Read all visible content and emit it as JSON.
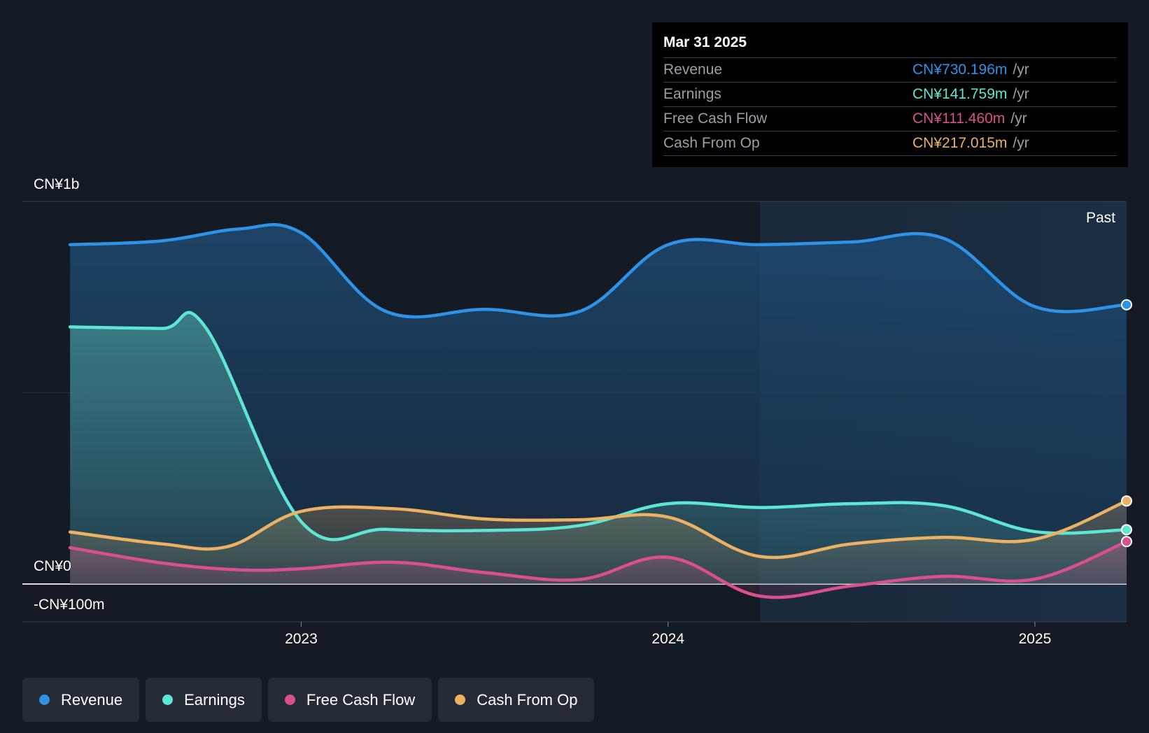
{
  "tooltip": {
    "date": "Mar 31 2025",
    "rows": [
      {
        "label": "Revenue",
        "value": "CN¥730.196m",
        "unit": "/yr",
        "color": "#2e93e6"
      },
      {
        "label": "Earnings",
        "value": "CN¥141.759m",
        "unit": "/yr",
        "color": "#5ee6d4"
      },
      {
        "label": "Free Cash Flow",
        "value": "CN¥111.460m",
        "unit": "/yr",
        "color": "#d9508c"
      },
      {
        "label": "Cash From Op",
        "value": "CN¥217.015m",
        "unit": "/yr",
        "color": "#ecb163"
      }
    ]
  },
  "past_label": "Past",
  "legend": [
    {
      "label": "Revenue",
      "color": "#2e93e6"
    },
    {
      "label": "Earnings",
      "color": "#5ee6d4"
    },
    {
      "label": "Free Cash Flow",
      "color": "#d9508c"
    },
    {
      "label": "Cash From Op",
      "color": "#ecb163"
    }
  ],
  "chart_data": {
    "type": "area",
    "y_tick_labels": [
      "CN¥1b",
      "CN¥0",
      "-CN¥100m"
    ],
    "x_tick_labels": [
      "2023",
      "2024",
      "2025"
    ],
    "x_ticks": [
      2023.0,
      2024.0,
      2025.0
    ],
    "xlim": [
      2022.24,
      2025.25
    ],
    "ylim": [
      -100,
      1000
    ],
    "grid": true,
    "past_region_start": 2024.25,
    "series": [
      {
        "name": "Revenue",
        "color": "#2e93e6",
        "x": [
          2022.37,
          2022.62,
          2022.83,
          2023.0,
          2023.23,
          2023.5,
          2023.76,
          2024.0,
          2024.25,
          2024.5,
          2024.75,
          2025.0,
          2025.25
        ],
        "y": [
          887,
          897,
          928,
          918,
          713,
          718,
          713,
          887,
          887,
          894,
          904,
          725,
          730
        ]
      },
      {
        "name": "Earnings",
        "color": "#5ee6d4",
        "x": [
          2022.37,
          2022.62,
          2022.74,
          2023.0,
          2023.23,
          2023.5,
          2023.76,
          2024.0,
          2024.25,
          2024.5,
          2024.75,
          2025.0,
          2025.25
        ],
        "y": [
          672,
          668,
          670,
          163,
          143,
          140,
          153,
          210,
          200,
          210,
          205,
          137,
          142
        ]
      },
      {
        "name": "Free Cash Flow",
        "color": "#d9508c",
        "x": [
          2022.37,
          2022.62,
          2022.83,
          2023.0,
          2023.25,
          2023.5,
          2023.76,
          2024.0,
          2024.25,
          2024.5,
          2024.75,
          2025.0,
          2025.25
        ],
        "y": [
          95,
          55,
          37,
          40,
          57,
          30,
          12,
          70,
          -32,
          -5,
          20,
          13,
          111
        ]
      },
      {
        "name": "Cash From Op",
        "color": "#ecb163",
        "x": [
          2022.37,
          2022.62,
          2022.8,
          2023.0,
          2023.25,
          2023.5,
          2023.76,
          2024.0,
          2024.25,
          2024.5,
          2024.75,
          2025.0,
          2025.25
        ],
        "y": [
          136,
          105,
          98,
          190,
          197,
          170,
          168,
          175,
          72,
          105,
          122,
          117,
          217
        ]
      }
    ]
  }
}
